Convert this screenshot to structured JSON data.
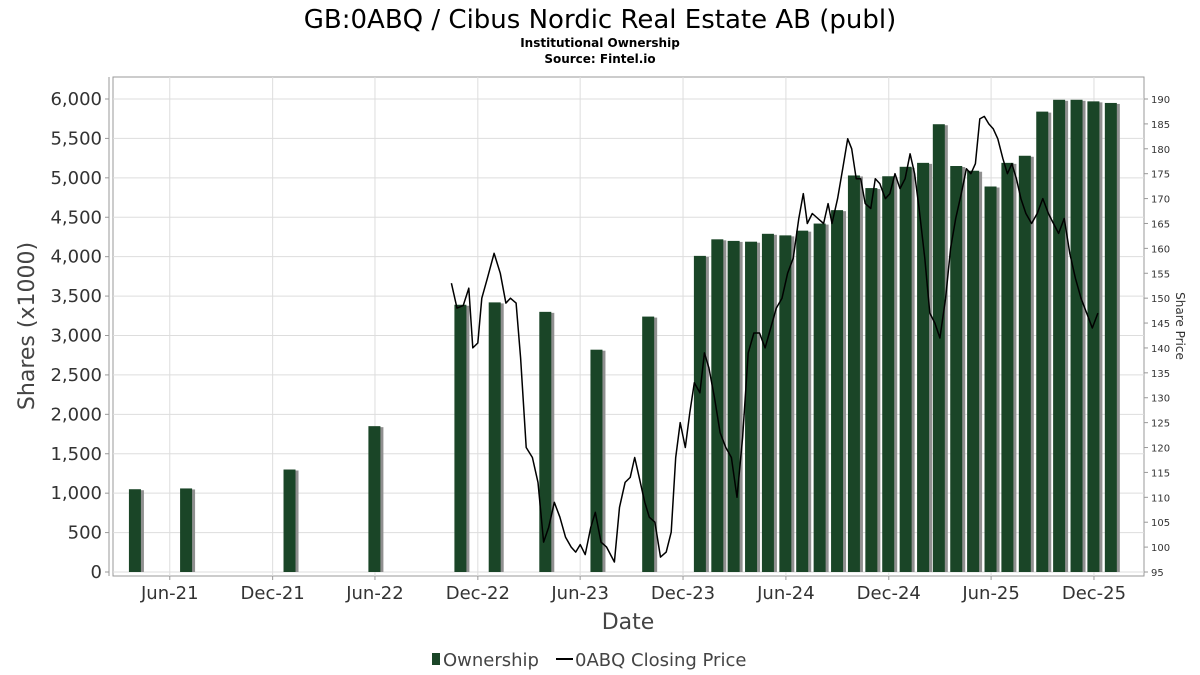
{
  "title": "GB:0ABQ / Cibus Nordic Real Estate AB (publ)",
  "subtitle": "Institutional Ownership",
  "source": "Source: Fintel.io",
  "colors": {
    "bar": "#1a4527",
    "bar_shadow": "#909090",
    "line": "#000000",
    "grid": "#dddddd"
  },
  "chart_data": {
    "type": "bar",
    "xlabel": "Date",
    "ylabel": "Shares (x1000)",
    "y2label": "Share Price",
    "ylim": [
      0,
      6000
    ],
    "y2lim": [
      95,
      190
    ],
    "xlim": [
      "2021-02-20",
      "2026-02-28"
    ],
    "grid": true,
    "legend_position": "bottom",
    "yticks": [
      0,
      500,
      1000,
      1500,
      2000,
      2500,
      3000,
      3500,
      4000,
      4500,
      5000,
      5500,
      6000
    ],
    "y2ticks": [
      95,
      100,
      105,
      110,
      115,
      120,
      125,
      130,
      135,
      140,
      145,
      150,
      155,
      160,
      165,
      170,
      175,
      180,
      185,
      190
    ],
    "xticks": [
      {
        "label": "Jun-21",
        "date": "2021-06-01"
      },
      {
        "label": "Dec-21",
        "date": "2021-12-01"
      },
      {
        "label": "Jun-22",
        "date": "2022-06-01"
      },
      {
        "label": "Dec-22",
        "date": "2022-12-01"
      },
      {
        "label": "Jun-23",
        "date": "2023-06-01"
      },
      {
        "label": "Dec-23",
        "date": "2023-12-01"
      },
      {
        "label": "Jun-24",
        "date": "2024-06-01"
      },
      {
        "label": "Dec-24",
        "date": "2024-12-01"
      },
      {
        "label": "Jun-25",
        "date": "2025-06-01"
      },
      {
        "label": "Dec-25",
        "date": "2025-12-01"
      }
    ],
    "series": [
      {
        "name": "Ownership",
        "kind": "bar",
        "points": [
          {
            "x": "2021-03-31",
            "y": 1050
          },
          {
            "x": "2021-06-30",
            "y": 1060
          },
          {
            "x": "2021-12-31",
            "y": 1300
          },
          {
            "x": "2022-05-31",
            "y": 1850
          },
          {
            "x": "2022-10-31",
            "y": 3390
          },
          {
            "x": "2022-12-31",
            "y": 3420
          },
          {
            "x": "2023-03-31",
            "y": 3300
          },
          {
            "x": "2023-06-30",
            "y": 2820
          },
          {
            "x": "2023-09-30",
            "y": 3240
          },
          {
            "x": "2023-12-31",
            "y": 4010
          },
          {
            "x": "2024-01-31",
            "y": 4220
          },
          {
            "x": "2024-02-29",
            "y": 4200
          },
          {
            "x": "2024-03-31",
            "y": 4190
          },
          {
            "x": "2024-04-30",
            "y": 4290
          },
          {
            "x": "2024-05-31",
            "y": 4270
          },
          {
            "x": "2024-06-30",
            "y": 4330
          },
          {
            "x": "2024-07-31",
            "y": 4420
          },
          {
            "x": "2024-08-31",
            "y": 4590
          },
          {
            "x": "2024-09-30",
            "y": 5030
          },
          {
            "x": "2024-10-31",
            "y": 4870
          },
          {
            "x": "2024-11-30",
            "y": 5020
          },
          {
            "x": "2024-12-31",
            "y": 5140
          },
          {
            "x": "2025-01-31",
            "y": 5190
          },
          {
            "x": "2025-02-28",
            "y": 5680
          },
          {
            "x": "2025-03-31",
            "y": 5150
          },
          {
            "x": "2025-04-30",
            "y": 5090
          },
          {
            "x": "2025-05-31",
            "y": 4890
          },
          {
            "x": "2025-06-30",
            "y": 5190
          },
          {
            "x": "2025-07-31",
            "y": 5280
          },
          {
            "x": "2025-08-31",
            "y": 5840
          },
          {
            "x": "2025-09-30",
            "y": 5990
          },
          {
            "x": "2025-10-31",
            "y": 5990
          },
          {
            "x": "2025-11-30",
            "y": 5970
          },
          {
            "x": "2025-12-31",
            "y": 5950
          }
        ]
      },
      {
        "name": "0ABQ Closing Price",
        "kind": "line",
        "axis": "right",
        "points": [
          {
            "x": "2022-10-15",
            "y": 153
          },
          {
            "x": "2022-10-25",
            "y": 148
          },
          {
            "x": "2022-11-05",
            "y": 148.5
          },
          {
            "x": "2022-11-15",
            "y": 152
          },
          {
            "x": "2022-11-22",
            "y": 140
          },
          {
            "x": "2022-12-01",
            "y": 141
          },
          {
            "x": "2022-12-08",
            "y": 150
          },
          {
            "x": "2022-12-18",
            "y": 154
          },
          {
            "x": "2022-12-30",
            "y": 159
          },
          {
            "x": "2023-01-10",
            "y": 155
          },
          {
            "x": "2023-01-20",
            "y": 149
          },
          {
            "x": "2023-01-28",
            "y": 150
          },
          {
            "x": "2023-02-07",
            "y": 149
          },
          {
            "x": "2023-02-15",
            "y": 138
          },
          {
            "x": "2023-02-25",
            "y": 120
          },
          {
            "x": "2023-03-08",
            "y": 118
          },
          {
            "x": "2023-03-18",
            "y": 113
          },
          {
            "x": "2023-03-28",
            "y": 101
          },
          {
            "x": "2023-04-06",
            "y": 104
          },
          {
            "x": "2023-04-16",
            "y": 109
          },
          {
            "x": "2023-04-26",
            "y": 106
          },
          {
            "x": "2023-05-06",
            "y": 102
          },
          {
            "x": "2023-05-16",
            "y": 100
          },
          {
            "x": "2023-05-24",
            "y": 99
          },
          {
            "x": "2023-06-01",
            "y": 100.5
          },
          {
            "x": "2023-06-10",
            "y": 98.5
          },
          {
            "x": "2023-06-20",
            "y": 104
          },
          {
            "x": "2023-06-28",
            "y": 107
          },
          {
            "x": "2023-07-08",
            "y": 101
          },
          {
            "x": "2023-07-18",
            "y": 100
          },
          {
            "x": "2023-08-01",
            "y": 97
          },
          {
            "x": "2023-08-10",
            "y": 108
          },
          {
            "x": "2023-08-20",
            "y": 113
          },
          {
            "x": "2023-08-29",
            "y": 114
          },
          {
            "x": "2023-09-06",
            "y": 118
          },
          {
            "x": "2023-09-14",
            "y": 114
          },
          {
            "x": "2023-09-24",
            "y": 109
          },
          {
            "x": "2023-10-02",
            "y": 106
          },
          {
            "x": "2023-10-12",
            "y": 105
          },
          {
            "x": "2023-10-22",
            "y": 98
          },
          {
            "x": "2023-11-01",
            "y": 99
          },
          {
            "x": "2023-11-10",
            "y": 103
          },
          {
            "x": "2023-11-18",
            "y": 118
          },
          {
            "x": "2023-11-26",
            "y": 125
          },
          {
            "x": "2023-12-05",
            "y": 120
          },
          {
            "x": "2023-12-13",
            "y": 127
          },
          {
            "x": "2023-12-21",
            "y": 133
          },
          {
            "x": "2023-12-31",
            "y": 131
          },
          {
            "x": "2024-01-08",
            "y": 139
          },
          {
            "x": "2024-01-16",
            "y": 136
          },
          {
            "x": "2024-01-26",
            "y": 130
          },
          {
            "x": "2024-02-05",
            "y": 123
          },
          {
            "x": "2024-02-15",
            "y": 120
          },
          {
            "x": "2024-02-25",
            "y": 118
          },
          {
            "x": "2024-03-06",
            "y": 110
          },
          {
            "x": "2024-03-16",
            "y": 122
          },
          {
            "x": "2024-03-26",
            "y": 139
          },
          {
            "x": "2024-04-05",
            "y": 143
          },
          {
            "x": "2024-04-15",
            "y": 143
          },
          {
            "x": "2024-04-25",
            "y": 140
          },
          {
            "x": "2024-05-05",
            "y": 144
          },
          {
            "x": "2024-05-15",
            "y": 148
          },
          {
            "x": "2024-05-25",
            "y": 150
          },
          {
            "x": "2024-06-04",
            "y": 155
          },
          {
            "x": "2024-06-14",
            "y": 158
          },
          {
            "x": "2024-06-24",
            "y": 166
          },
          {
            "x": "2024-07-02",
            "y": 171
          },
          {
            "x": "2024-07-09",
            "y": 165
          },
          {
            "x": "2024-07-18",
            "y": 167
          },
          {
            "x": "2024-07-28",
            "y": 166
          },
          {
            "x": "2024-08-07",
            "y": 165
          },
          {
            "x": "2024-08-15",
            "y": 169
          },
          {
            "x": "2024-08-22",
            "y": 165
          },
          {
            "x": "2024-09-01",
            "y": 170
          },
          {
            "x": "2024-09-10",
            "y": 176
          },
          {
            "x": "2024-09-19",
            "y": 182
          },
          {
            "x": "2024-09-26",
            "y": 180
          },
          {
            "x": "2024-10-04",
            "y": 174
          },
          {
            "x": "2024-10-12",
            "y": 174
          },
          {
            "x": "2024-10-20",
            "y": 169
          },
          {
            "x": "2024-10-30",
            "y": 168
          },
          {
            "x": "2024-11-07",
            "y": 174
          },
          {
            "x": "2024-11-15",
            "y": 173
          },
          {
            "x": "2024-11-25",
            "y": 170
          },
          {
            "x": "2024-12-03",
            "y": 171
          },
          {
            "x": "2024-12-12",
            "y": 175
          },
          {
            "x": "2024-12-21",
            "y": 172
          },
          {
            "x": "2024-12-30",
            "y": 174
          },
          {
            "x": "2025-01-08",
            "y": 179
          },
          {
            "x": "2025-01-16",
            "y": 175
          },
          {
            "x": "2025-01-24",
            "y": 168
          },
          {
            "x": "2025-02-03",
            "y": 158
          },
          {
            "x": "2025-02-12",
            "y": 147
          },
          {
            "x": "2025-02-21",
            "y": 145
          },
          {
            "x": "2025-03-02",
            "y": 142
          },
          {
            "x": "2025-03-12",
            "y": 150
          },
          {
            "x": "2025-03-21",
            "y": 160
          },
          {
            "x": "2025-03-30",
            "y": 166
          },
          {
            "x": "2025-04-09",
            "y": 171
          },
          {
            "x": "2025-04-18",
            "y": 176
          },
          {
            "x": "2025-04-26",
            "y": 175
          },
          {
            "x": "2025-05-04",
            "y": 177
          },
          {
            "x": "2025-05-12",
            "y": 186
          },
          {
            "x": "2025-05-20",
            "y": 186.5
          },
          {
            "x": "2025-05-28",
            "y": 185
          },
          {
            "x": "2025-06-05",
            "y": 184
          },
          {
            "x": "2025-06-13",
            "y": 182
          },
          {
            "x": "2025-06-22",
            "y": 178
          },
          {
            "x": "2025-06-30",
            "y": 175
          },
          {
            "x": "2025-07-08",
            "y": 177
          },
          {
            "x": "2025-07-16",
            "y": 174
          },
          {
            "x": "2025-07-24",
            "y": 170
          },
          {
            "x": "2025-08-02",
            "y": 167
          },
          {
            "x": "2025-08-12",
            "y": 165
          },
          {
            "x": "2025-08-22",
            "y": 167
          },
          {
            "x": "2025-09-01",
            "y": 170
          },
          {
            "x": "2025-09-11",
            "y": 167
          },
          {
            "x": "2025-09-20",
            "y": 165
          },
          {
            "x": "2025-09-29",
            "y": 163
          },
          {
            "x": "2025-10-09",
            "y": 166
          },
          {
            "x": "2025-10-19",
            "y": 159
          },
          {
            "x": "2025-10-29",
            "y": 154
          },
          {
            "x": "2025-11-08",
            "y": 150
          },
          {
            "x": "2025-11-18",
            "y": 147
          },
          {
            "x": "2025-11-28",
            "y": 144
          },
          {
            "x": "2025-12-08",
            "y": 147
          }
        ]
      }
    ]
  }
}
